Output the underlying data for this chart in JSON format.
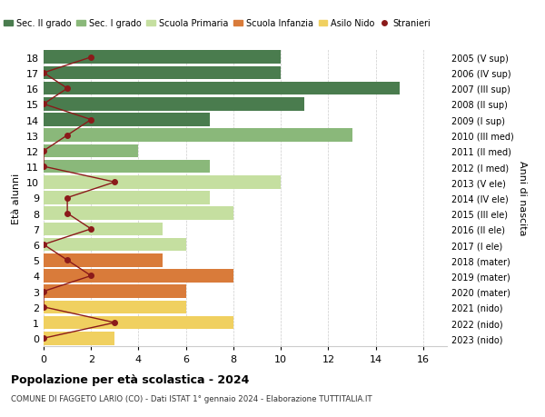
{
  "ages": [
    0,
    1,
    2,
    3,
    4,
    5,
    6,
    7,
    8,
    9,
    10,
    11,
    12,
    13,
    14,
    15,
    16,
    17,
    18
  ],
  "right_labels": [
    "2023 (nido)",
    "2022 (nido)",
    "2021 (nido)",
    "2020 (mater)",
    "2019 (mater)",
    "2018 (mater)",
    "2017 (I ele)",
    "2016 (II ele)",
    "2015 (III ele)",
    "2014 (IV ele)",
    "2013 (V ele)",
    "2012 (I med)",
    "2011 (II med)",
    "2010 (III med)",
    "2009 (I sup)",
    "2008 (II sup)",
    "2007 (III sup)",
    "2006 (IV sup)",
    "2005 (V sup)"
  ],
  "bar_values": [
    3,
    8,
    6,
    6,
    8,
    5,
    6,
    5,
    8,
    7,
    10,
    7,
    4,
    13,
    7,
    11,
    15,
    10,
    10
  ],
  "bar_colors": [
    "#f0d060",
    "#f0d060",
    "#f0d060",
    "#d97b3a",
    "#d97b3a",
    "#d97b3a",
    "#c5dfa0",
    "#c5dfa0",
    "#c5dfa0",
    "#c5dfa0",
    "#c5dfa0",
    "#8ab87a",
    "#8ab87a",
    "#8ab87a",
    "#4a7c4e",
    "#4a7c4e",
    "#4a7c4e",
    "#4a7c4e",
    "#4a7c4e"
  ],
  "stranieri_values": [
    0,
    3,
    0,
    0,
    2,
    1,
    0,
    2,
    1,
    1,
    3,
    0,
    0,
    1,
    2,
    0,
    1,
    0,
    2
  ],
  "stranieri_color": "#8b1a1a",
  "title_bold": "Popolazione per età scolastica - 2024",
  "subtitle": "COMUNE DI FAGGETO LARIO (CO) - Dati ISTAT 1° gennaio 2024 - Elaborazione TUTTITALIA.IT",
  "ylabel": "Età alunni",
  "right_ylabel": "Anni di nascita",
  "xlim": [
    0,
    17
  ],
  "xticks": [
    0,
    2,
    4,
    6,
    8,
    10,
    12,
    14,
    16
  ],
  "legend_items": [
    {
      "label": "Sec. II grado",
      "color": "#4a7c4e"
    },
    {
      "label": "Sec. I grado",
      "color": "#8ab87a"
    },
    {
      "label": "Scuola Primaria",
      "color": "#c5dfa0"
    },
    {
      "label": "Scuola Infanzia",
      "color": "#d97b3a"
    },
    {
      "label": "Asilo Nido",
      "color": "#f0d060"
    },
    {
      "label": "Stranieri",
      "color": "#8b1a1a"
    }
  ],
  "bg_color": "#ffffff",
  "bar_height": 0.85,
  "grid_color": "#cccccc"
}
